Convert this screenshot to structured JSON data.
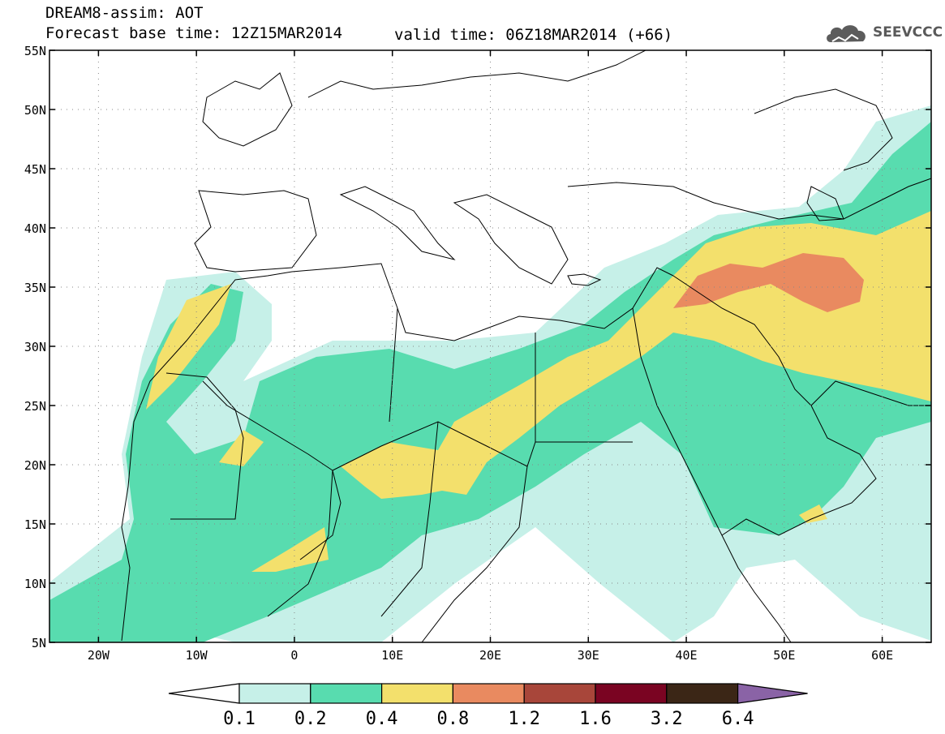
{
  "header": {
    "title": "DREAM8-assim: AOT",
    "base_time": "Forecast base time: 12Z15MAR2014",
    "valid_time": "valid time: 06Z18MAR2014 (+66)",
    "logo_text": "SEEVCCC"
  },
  "map": {
    "lat_labels": [
      "55N",
      "50N",
      "45N",
      "40N",
      "35N",
      "30N",
      "25N",
      "20N",
      "15N",
      "10N",
      "5N"
    ],
    "lon_labels": [
      "20W",
      "10W",
      "0",
      "10E",
      "20E",
      "30E",
      "40E",
      "50E",
      "60E"
    ],
    "lon_range": [
      -25,
      65
    ],
    "lat_range": [
      5,
      55
    ]
  },
  "legend": {
    "ticks": [
      "0.1",
      "0.2",
      "0.4",
      "0.8",
      "1.2",
      "1.6",
      "3.2",
      "6.4"
    ],
    "colors": [
      "#c6f0e8",
      "#58dcaf",
      "#f3e06c",
      "#e98a60",
      "#a8463a",
      "#7a0422",
      "#3b2616",
      "#8a63a6"
    ]
  }
}
